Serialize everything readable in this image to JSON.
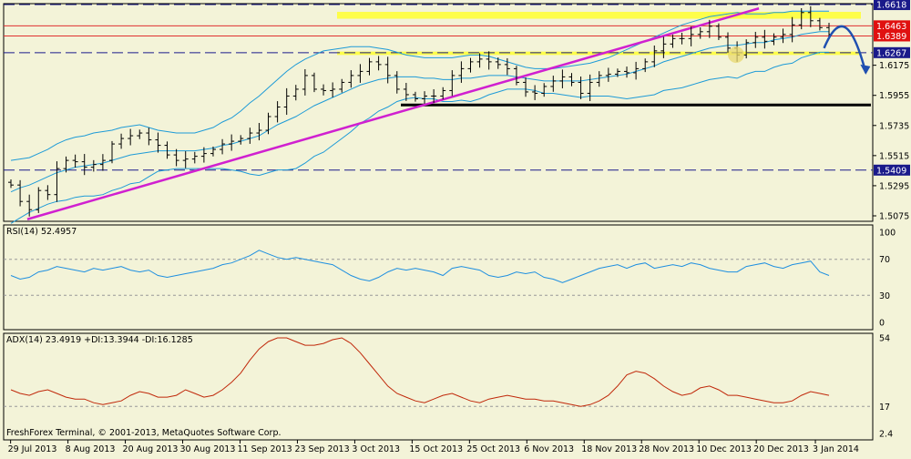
{
  "copyright": "FreshForex Terminal, © 2001-2013, MetaQuotes Software Corp.",
  "colors": {
    "background": "#f3f3d8",
    "price_bars": "#000000",
    "bollinger": "#1e9bd7",
    "trendline": "#d020d0",
    "support": "#000000",
    "resistance": "#e03030",
    "dashed": "#1a1a8a",
    "zone": "#ffff30",
    "arrow": "#1f4fb0",
    "rsi_line": "#1e8fe0",
    "adx_line": "#c0280a",
    "label_box": "#1a1a8a",
    "label_highlight": "#e01010"
  },
  "chart_data": [
    {
      "type": "ohlc",
      "x_start": "29 Jul 2013",
      "x_end": "3 Jan 2014",
      "y_ticks": [
        "1.6175",
        "1.5955",
        "1.5735",
        "1.5515",
        "1.5295",
        "1.5075"
      ],
      "ylim": [
        1.5035,
        1.6625
      ],
      "price_labels": [
        {
          "text": "1.6618",
          "value": 1.6618,
          "style": "box"
        },
        {
          "text": "1.6463",
          "value": 1.6463,
          "style": "highlight"
        },
        {
          "text": "1.6389",
          "value": 1.6389,
          "style": "highlight"
        },
        {
          "text": "1.6267",
          "value": 1.6267,
          "style": "box"
        },
        {
          "text": "1.5409",
          "value": 1.5409,
          "style": "box"
        }
      ],
      "horizontal_lines": [
        {
          "value": 1.6618,
          "style": "dashed"
        },
        {
          "value": 1.6463,
          "style": "resistance"
        },
        {
          "value": 1.6389,
          "style": "resistance"
        },
        {
          "value": 1.6267,
          "style": "dashed"
        },
        {
          "value": 1.5409,
          "style": "dashed"
        }
      ],
      "zones": [
        {
          "y_top": 1.6565,
          "y_bottom": 1.6515
        },
        {
          "y_top": 1.6275,
          "y_bottom": 1.625
        }
      ],
      "support_line": {
        "value": 1.5885,
        "x_from": 0.46,
        "x_to": 1.0
      },
      "trendline": {
        "from": [
          0.0,
          1.505
        ],
        "to": [
          0.89,
          1.659
        ]
      },
      "forecast_arrow": [
        [
          0.944,
          1.63
        ],
        [
          0.96,
          1.654
        ],
        [
          0.975,
          1.653
        ],
        [
          0.992,
          1.612
        ]
      ],
      "closes": [
        1.53,
        1.518,
        1.512,
        1.526,
        1.523,
        1.542,
        1.548,
        1.547,
        1.543,
        1.545,
        1.548,
        1.56,
        1.564,
        1.566,
        1.568,
        1.563,
        1.559,
        1.552,
        1.548,
        1.549,
        1.551,
        1.553,
        1.556,
        1.56,
        1.562,
        1.564,
        1.568,
        1.57,
        1.58,
        1.587,
        1.595,
        1.6,
        1.61,
        1.6,
        1.599,
        1.6,
        1.605,
        1.61,
        1.613,
        1.62,
        1.618,
        1.61,
        1.6,
        1.596,
        1.593,
        1.595,
        1.595,
        1.599,
        1.61,
        1.615,
        1.62,
        1.622,
        1.62,
        1.618,
        1.615,
        1.605,
        1.598,
        1.597,
        1.602,
        1.606,
        1.609,
        1.605,
        1.597,
        1.605,
        1.61,
        1.611,
        1.613,
        1.612,
        1.615,
        1.62,
        1.628,
        1.633,
        1.637,
        1.637,
        1.64,
        1.642,
        1.646,
        1.638,
        1.63,
        1.625,
        1.634,
        1.638,
        1.635,
        1.638,
        1.64,
        1.647,
        1.656,
        1.65,
        1.645,
        1.64
      ],
      "middle_band": [
        1.525,
        1.528,
        1.53,
        1.533,
        1.536,
        1.539,
        1.541,
        1.543,
        1.544,
        1.545,
        1.546,
        1.548,
        1.55,
        1.552,
        1.553,
        1.554,
        1.555,
        1.555,
        1.555,
        1.555,
        1.555,
        1.556,
        1.557,
        1.559,
        1.56,
        1.562,
        1.564,
        1.566,
        1.57,
        1.574,
        1.577,
        1.58,
        1.584,
        1.588,
        1.591,
        1.594,
        1.597,
        1.6,
        1.603,
        1.605,
        1.607,
        1.608,
        1.609,
        1.609,
        1.609,
        1.608,
        1.608,
        1.607,
        1.607,
        1.608,
        1.608,
        1.609,
        1.61,
        1.61,
        1.61,
        1.609,
        1.608,
        1.607,
        1.606,
        1.606,
        1.606,
        1.606,
        1.606,
        1.607,
        1.608,
        1.609,
        1.61,
        1.611,
        1.613,
        1.615,
        1.617,
        1.62,
        1.622,
        1.624,
        1.626,
        1.628,
        1.63,
        1.631,
        1.632,
        1.632,
        1.633,
        1.634,
        1.634,
        1.636,
        1.637,
        1.638,
        1.64,
        1.641,
        1.642,
        1.642
      ],
      "upper_band": [
        1.548,
        1.549,
        1.55,
        1.553,
        1.556,
        1.56,
        1.563,
        1.565,
        1.566,
        1.568,
        1.569,
        1.57,
        1.572,
        1.573,
        1.574,
        1.572,
        1.57,
        1.569,
        1.568,
        1.568,
        1.568,
        1.57,
        1.572,
        1.576,
        1.579,
        1.584,
        1.59,
        1.595,
        1.601,
        1.607,
        1.613,
        1.618,
        1.622,
        1.625,
        1.628,
        1.629,
        1.63,
        1.631,
        1.631,
        1.631,
        1.63,
        1.629,
        1.627,
        1.625,
        1.624,
        1.623,
        1.623,
        1.623,
        1.623,
        1.624,
        1.625,
        1.625,
        1.624,
        1.622,
        1.62,
        1.618,
        1.616,
        1.615,
        1.615,
        1.615,
        1.616,
        1.617,
        1.618,
        1.619,
        1.621,
        1.623,
        1.626,
        1.629,
        1.632,
        1.635,
        1.638,
        1.641,
        1.644,
        1.647,
        1.649,
        1.651,
        1.653,
        1.654,
        1.655,
        1.656,
        1.655,
        1.655,
        1.655,
        1.656,
        1.656,
        1.657,
        1.657,
        1.657,
        1.657,
        1.657
      ],
      "lower_band": [
        1.502,
        1.506,
        1.51,
        1.513,
        1.516,
        1.518,
        1.519,
        1.521,
        1.522,
        1.522,
        1.523,
        1.526,
        1.528,
        1.531,
        1.532,
        1.536,
        1.54,
        1.541,
        1.542,
        1.542,
        1.542,
        1.542,
        1.542,
        1.542,
        1.541,
        1.54,
        1.538,
        1.537,
        1.539,
        1.541,
        1.541,
        1.542,
        1.546,
        1.551,
        1.554,
        1.559,
        1.564,
        1.569,
        1.575,
        1.579,
        1.584,
        1.587,
        1.591,
        1.593,
        1.594,
        1.593,
        1.593,
        1.591,
        1.591,
        1.592,
        1.591,
        1.593,
        1.596,
        1.598,
        1.6,
        1.6,
        1.6,
        1.599,
        1.597,
        1.597,
        1.596,
        1.595,
        1.594,
        1.595,
        1.595,
        1.595,
        1.594,
        1.593,
        1.594,
        1.595,
        1.596,
        1.599,
        1.6,
        1.601,
        1.603,
        1.605,
        1.607,
        1.608,
        1.609,
        1.608,
        1.611,
        1.613,
        1.613,
        1.616,
        1.618,
        1.619,
        1.623,
        1.625,
        1.627,
        1.627
      ]
    },
    {
      "type": "line",
      "title": "RSI(14) 52.4957",
      "y_ticks": [
        "100",
        "70",
        "30",
        "0"
      ],
      "ylim": [
        0,
        100
      ],
      "levels": [
        70,
        30
      ],
      "series": [
        {
          "values": [
            52,
            48,
            50,
            56,
            58,
            62,
            60,
            58,
            56,
            60,
            58,
            60,
            62,
            58,
            56,
            58,
            52,
            50,
            52,
            54,
            56,
            58,
            60,
            64,
            66,
            70,
            74,
            80,
            76,
            72,
            70,
            72,
            70,
            68,
            66,
            64,
            58,
            52,
            48,
            46,
            50,
            56,
            60,
            58,
            60,
            58,
            56,
            52,
            60,
            62,
            60,
            58,
            52,
            50,
            52,
            56,
            54,
            56,
            50,
            48,
            44,
            48,
            52,
            56,
            60,
            62,
            64,
            60,
            64,
            66,
            60,
            62,
            64,
            62,
            66,
            64,
            60,
            58,
            56,
            56,
            62,
            64,
            66,
            62,
            60,
            64,
            66,
            68,
            56,
            52
          ]
        }
      ]
    },
    {
      "type": "line",
      "title": "ADX(14) 23.4919 +DI:13.3944 -DI:16.1285",
      "y_ticks": [
        "54",
        "17",
        "2.4"
      ],
      "ylim": [
        2.4,
        54
      ],
      "levels": [
        17
      ],
      "series": [
        {
          "values": [
            26,
            24,
            23,
            25,
            26,
            24,
            22,
            21,
            21,
            19,
            18,
            19,
            20,
            23,
            25,
            24,
            22,
            22,
            23,
            26,
            24,
            22,
            23,
            26,
            30,
            35,
            42,
            48,
            52,
            54,
            54,
            52,
            50,
            50,
            51,
            53,
            54,
            51,
            46,
            40,
            34,
            28,
            24,
            22,
            20,
            19,
            21,
            23,
            24,
            22,
            20,
            19,
            21,
            22,
            23,
            22,
            21,
            21,
            20,
            20,
            19,
            18,
            17,
            18,
            20,
            23,
            28,
            34,
            36,
            35,
            32,
            28,
            25,
            23,
            24,
            27,
            28,
            26,
            23,
            23,
            22,
            21,
            20,
            19,
            19,
            20,
            23,
            25,
            24,
            23
          ]
        }
      ]
    }
  ],
  "x_axis": {
    "labels": [
      {
        "text": "29 Jul 2013",
        "pos": 0.008
      },
      {
        "text": "8 Aug 2013",
        "pos": 0.074
      },
      {
        "text": "20 Aug 2013",
        "pos": 0.14
      },
      {
        "text": "30 Aug 2013",
        "pos": 0.206
      },
      {
        "text": "11 Sep 2013",
        "pos": 0.272
      },
      {
        "text": "23 Sep 2013",
        "pos": 0.338
      },
      {
        "text": "3 Oct 2013",
        "pos": 0.404
      },
      {
        "text": "15 Oct 2013",
        "pos": 0.47
      },
      {
        "text": "25 Oct 2013",
        "pos": 0.536
      },
      {
        "text": "6 Nov 2013",
        "pos": 0.602
      },
      {
        "text": "18 Nov 2013",
        "pos": 0.668
      },
      {
        "text": "28 Nov 2013",
        "pos": 0.734
      },
      {
        "text": "10 Dec 2013",
        "pos": 0.8
      },
      {
        "text": "20 Dec 2013",
        "pos": 0.866
      },
      {
        "text": "3 Jan 2014",
        "pos": 0.934
      }
    ]
  }
}
